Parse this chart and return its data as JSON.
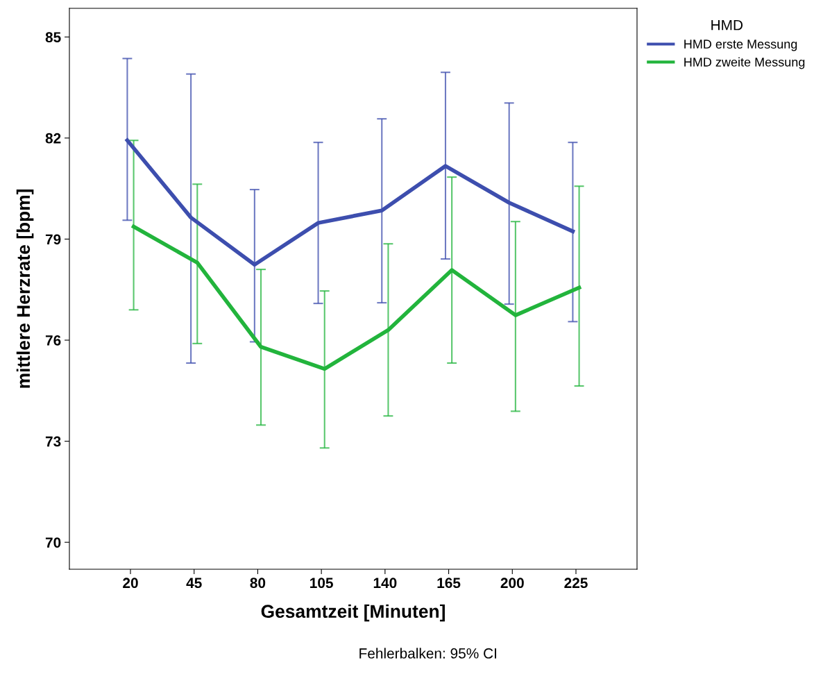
{
  "chart_data": {
    "type": "line",
    "xlabel": "Gesamtzeit [Minuten]",
    "ylabel": "mittlere Herzrate [bpm]",
    "legend_title": "HMD",
    "legend": "top right",
    "grid": false,
    "marker": "none",
    "line_style": "solid",
    "categories": [
      "20",
      "45",
      "80",
      "105",
      "140",
      "165",
      "200",
      "225"
    ],
    "ylim": [
      69.2,
      85.85
    ],
    "yticks": [
      70,
      73,
      76,
      79,
      82,
      85
    ],
    "series": [
      {
        "name": "HMD erste Messung",
        "color": "#3d4eae",
        "values": [
          81.93,
          79.64,
          78.24,
          79.48,
          79.85,
          81.17,
          80.08,
          79.23
        ],
        "errors": [
          [
            79.56,
            84.36
          ],
          [
            75.32,
            83.9
          ],
          [
            75.95,
            80.47
          ],
          [
            77.09,
            81.87
          ],
          [
            77.11,
            82.57
          ],
          [
            78.41,
            83.95
          ],
          [
            77.07,
            83.04
          ],
          [
            76.55,
            81.87
          ]
        ]
      },
      {
        "name": "HMD zweite Messung",
        "color": "#22b43c",
        "values": [
          79.37,
          78.3,
          75.8,
          75.15,
          76.3,
          78.08,
          76.74,
          77.56
        ],
        "errors": [
          [
            76.9,
            81.93
          ],
          [
            75.9,
            80.63
          ],
          [
            73.48,
            78.1
          ],
          [
            72.8,
            77.46
          ],
          [
            73.75,
            78.86
          ],
          [
            75.32,
            80.84
          ],
          [
            73.89,
            79.52
          ],
          [
            74.64,
            80.57
          ]
        ]
      }
    ],
    "annotations": [
      "Fehlerbalken: 95% CI"
    ]
  }
}
